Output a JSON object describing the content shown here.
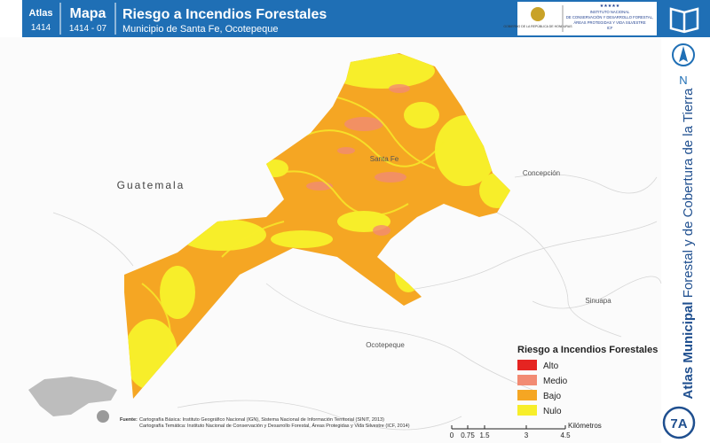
{
  "header": {
    "atlas_label": "Atlas",
    "atlas_number": "1414",
    "map_label": "Mapa",
    "map_number": "1414 - 07",
    "title": "Riesgo a Incendios Forestales",
    "subtitle": "Municipio de Santa Fe, Ocotepeque",
    "logo_left": "GOBIERNO DE LA REPÚBLICA DE HONDURAS",
    "logo_right": [
      "INSTITUTO NACIONAL",
      "DE CONSERVACIÓN Y DESARROLLO FORESTAL,",
      "ÁREAS PROTEGIDAS Y VIDA SILVESTRE",
      "ICF"
    ]
  },
  "side": {
    "north": "N",
    "series_bold": "Atlas Municipal",
    "series_rest": "Forestal y de Cobertura de la Tierra",
    "badge": "7A"
  },
  "map": {
    "places": [
      "Guatemala",
      "Santa Fe",
      "Concepción",
      "Sinuapa",
      "Ocotepeque"
    ]
  },
  "legend": {
    "title": "Riesgo a Incendios Forestales",
    "items": [
      {
        "label": "Alto",
        "color": "#e52421"
      },
      {
        "label": "Medio",
        "color": "#f28b73"
      },
      {
        "label": "Bajo",
        "color": "#f5a623"
      },
      {
        "label": "Nulo",
        "color": "#f7ee2a"
      }
    ]
  },
  "scale": {
    "ticks": [
      "0",
      "0.75",
      "1.5",
      "3",
      "4.5"
    ],
    "unit": "Kilómetros"
  },
  "source": {
    "label": "Fuente:",
    "lines": [
      "Cartografía Básica: Instituto Geográfico Nacional (IGN), Sistema Nacional de Información Territorial (SINIT, 2013)",
      "Cartografía Temática: Instituto Nacional de Conservación y Desarrollo Forestal, Áreas Protegidas y Vida Silvestre (ICF, 2014)"
    ]
  }
}
